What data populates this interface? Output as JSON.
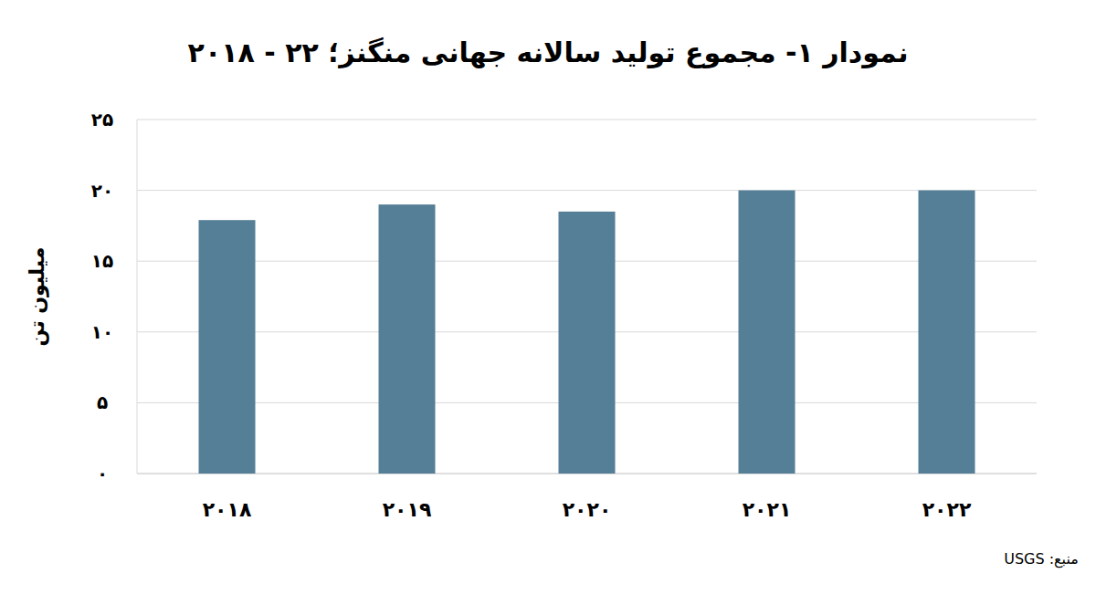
{
  "chart_data": {
    "type": "bar",
    "title": "نمودار ۱- مجموع تولید سالانه جهانی منگنز؛ ۲۲ - ۲۰۱۸",
    "y_label": "میلیون تن",
    "source": "منبع: USGS",
    "categories": [
      "۲۰۱۸",
      "۲۰۱۹",
      "۲۰۲۰",
      "۲۰۲۱",
      "۲۰۲۲"
    ],
    "values": [
      17.9,
      19,
      18.5,
      20,
      20
    ],
    "color": "#557f96",
    "ylim": [
      0,
      25
    ],
    "yticks": [
      {
        "value": 0,
        "label": "۰"
      },
      {
        "value": 5,
        "label": "۵"
      },
      {
        "value": 10,
        "label": "۱۰"
      },
      {
        "value": 15,
        "label": "۱۵"
      },
      {
        "value": 20,
        "label": "۲۰"
      },
      {
        "value": 25,
        "label": "۲۵"
      }
    ],
    "grid": true
  }
}
